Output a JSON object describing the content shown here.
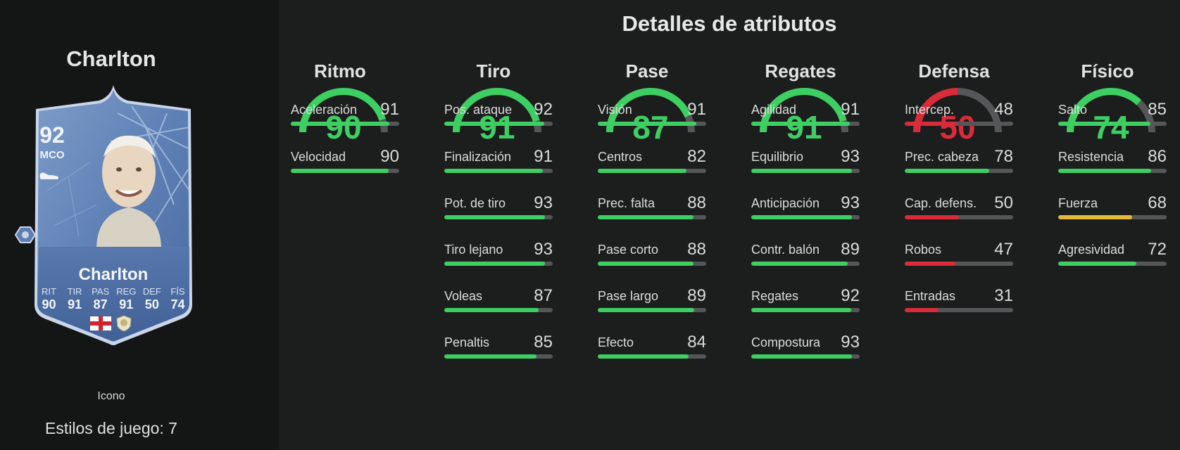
{
  "player": {
    "name": "Charlton",
    "card_name": "Charlton",
    "rating": "92",
    "position": "MCO",
    "card_stats": [
      {
        "label": "RIT",
        "value": "90"
      },
      {
        "label": "TIR",
        "value": "91"
      },
      {
        "label": "PAS",
        "value": "87"
      },
      {
        "label": "REG",
        "value": "91"
      },
      {
        "label": "DEF",
        "value": "50"
      },
      {
        "label": "FÍS",
        "value": "74"
      }
    ],
    "card_type": "Icono",
    "playstyles": "Estilos de juego: 7"
  },
  "colors": {
    "green": "#3ecf63",
    "red": "#d92b3a",
    "yellow": "#e3b93a",
    "track": "#545657"
  },
  "section_title": "Detalles de atributos",
  "categories": [
    {
      "name": "Ritmo",
      "value": 90,
      "attributes": [
        {
          "label": "Aceleración",
          "value": 91
        },
        {
          "label": "Velocidad",
          "value": 90
        }
      ]
    },
    {
      "name": "Tiro",
      "value": 91,
      "attributes": [
        {
          "label": "Pos. ataque",
          "value": 92
        },
        {
          "label": "Finalización",
          "value": 91
        },
        {
          "label": "Pot. de tiro",
          "value": 93
        },
        {
          "label": "Tiro lejano",
          "value": 93
        },
        {
          "label": "Voleas",
          "value": 87
        },
        {
          "label": "Penaltis",
          "value": 85
        }
      ]
    },
    {
      "name": "Pase",
      "value": 87,
      "attributes": [
        {
          "label": "Visión",
          "value": 91
        },
        {
          "label": "Centros",
          "value": 82
        },
        {
          "label": "Prec. falta",
          "value": 88
        },
        {
          "label": "Pase corto",
          "value": 88
        },
        {
          "label": "Pase largo",
          "value": 89
        },
        {
          "label": "Efecto",
          "value": 84
        }
      ]
    },
    {
      "name": "Regates",
      "value": 91,
      "attributes": [
        {
          "label": "Agilidad",
          "value": 91
        },
        {
          "label": "Equilibrio",
          "value": 93
        },
        {
          "label": "Anticipación",
          "value": 93
        },
        {
          "label": "Contr. balón",
          "value": 89
        },
        {
          "label": "Regates",
          "value": 92
        },
        {
          "label": "Compostura",
          "value": 93
        }
      ]
    },
    {
      "name": "Defensa",
      "value": 50,
      "attributes": [
        {
          "label": "Intercep.",
          "value": 48
        },
        {
          "label": "Prec. cabeza",
          "value": 78
        },
        {
          "label": "Cap. defens.",
          "value": 50
        },
        {
          "label": "Robos",
          "value": 47
        },
        {
          "label": "Entradas",
          "value": 31
        }
      ]
    },
    {
      "name": "Físico",
      "value": 74,
      "attributes": [
        {
          "label": "Salto",
          "value": 85
        },
        {
          "label": "Resistencia",
          "value": 86
        },
        {
          "label": "Fuerza",
          "value": 68
        },
        {
          "label": "Agresividad",
          "value": 72
        }
      ]
    }
  ]
}
